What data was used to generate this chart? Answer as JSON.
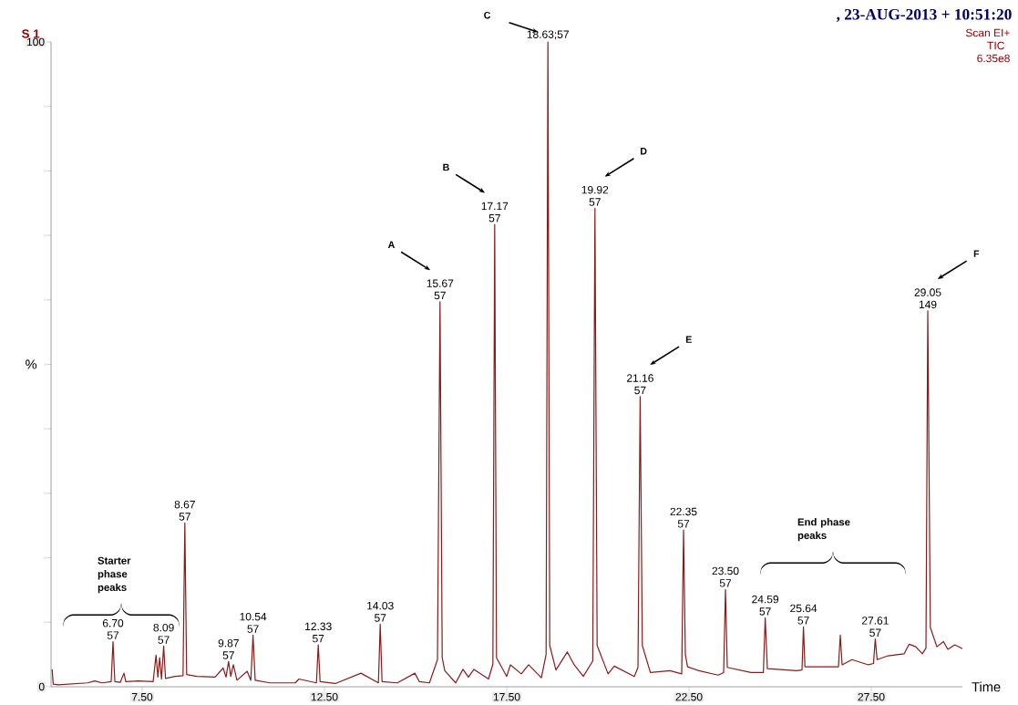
{
  "chart_data": {
    "type": "line",
    "xlabel": "Time",
    "ylabel": "%",
    "xlim": [
      5.0,
      30.0
    ],
    "ylim": [
      0,
      100
    ],
    "xticks": [
      {
        "value": 7.5,
        "label": "7.50"
      },
      {
        "value": 12.5,
        "label": "12.50"
      },
      {
        "value": 17.5,
        "label": "17.50"
      },
      {
        "value": 22.5,
        "label": "22.50"
      },
      {
        "value": 27.5,
        "label": "27.50"
      }
    ],
    "yticks": [
      0,
      {
        "value": 10,
        "label": null
      },
      {
        "value": 20,
        "label": null
      },
      {
        "value": 30,
        "label": null
      },
      {
        "value": 40,
        "label": null
      },
      {
        "value": 50,
        "label": null
      },
      {
        "value": 60,
        "label": null
      },
      {
        "value": 70,
        "label": null
      },
      {
        "value": 80,
        "label": null
      },
      {
        "value": 90,
        "label": null
      },
      100
    ],
    "x": [
      5.03,
      5.06,
      5.2,
      6.0,
      6.2,
      6.4,
      6.65,
      6.7,
      6.75,
      6.9,
      7.0,
      7.05,
      7.4,
      7.8,
      7.88,
      7.93,
      7.98,
      8.03,
      8.09,
      8.14,
      8.4,
      8.62,
      8.67,
      8.72,
      9.0,
      9.5,
      9.72,
      9.8,
      9.87,
      9.93,
      10.0,
      10.1,
      10.38,
      10.48,
      10.54,
      10.6,
      11.0,
      11.7,
      11.8,
      12.28,
      12.33,
      12.38,
      12.8,
      13.5,
      13.98,
      14.03,
      14.08,
      14.5,
      14.98,
      15.1,
      15.38,
      15.6,
      15.67,
      15.73,
      15.8,
      16.1,
      16.3,
      16.45,
      16.6,
      17.0,
      17.12,
      17.17,
      17.22,
      17.5,
      17.6,
      17.9,
      18.1,
      18.45,
      18.58,
      18.63,
      18.68,
      18.85,
      19.16,
      19.35,
      19.6,
      19.86,
      19.92,
      19.98,
      20.28,
      20.45,
      21.0,
      21.1,
      21.16,
      21.22,
      21.44,
      21.98,
      22.3,
      22.35,
      22.4,
      22.46,
      22.77,
      23.3,
      23.45,
      23.5,
      23.55,
      24.2,
      24.54,
      24.59,
      24.65,
      25.45,
      25.6,
      25.64,
      25.68,
      25.99,
      26.6,
      26.65,
      26.7,
      26.97,
      27.42,
      27.56,
      27.61,
      27.66,
      27.96,
      28.4,
      28.54,
      28.72,
      28.9,
      29.0,
      29.05,
      29.12,
      29.3,
      29.48,
      29.6,
      29.79,
      30.0
    ],
    "series": [
      {
        "color": "#8b1a1a",
        "values": [
          2.7,
          0.4,
          0.3,
          0.6,
          0.9,
          0.6,
          0.8,
          7.0,
          0.8,
          0.7,
          2.1,
          0.8,
          0.9,
          0.8,
          4.9,
          1.5,
          4.5,
          1.2,
          6.3,
          1.3,
          1.6,
          1.7,
          25.4,
          1.9,
          1.6,
          1.5,
          2.9,
          1.5,
          3.9,
          1.6,
          3.4,
          1.0,
          2.4,
          1.0,
          8.0,
          1.0,
          0.6,
          0.6,
          1.2,
          0.6,
          6.5,
          0.8,
          0.5,
          2.1,
          0.6,
          9.7,
          0.8,
          0.6,
          2.1,
          0.8,
          0.6,
          4.2,
          59.7,
          4.5,
          2.5,
          0.6,
          2.7,
          1.5,
          2.7,
          1.2,
          3.5,
          71.7,
          4.5,
          1.6,
          3.4,
          2.0,
          3.4,
          1.4,
          5.0,
          100,
          6.4,
          2.6,
          5.4,
          3.4,
          1.6,
          4.0,
          74.2,
          6.4,
          2.0,
          3.2,
          1.6,
          3.0,
          45.0,
          6.4,
          2.2,
          2.5,
          2.0,
          24.3,
          5.0,
          3.1,
          2.5,
          1.8,
          2.2,
          15.1,
          3.0,
          2.2,
          2.2,
          10.7,
          2.8,
          2.5,
          2.6,
          9.3,
          3.1,
          3.1,
          3.1,
          8.0,
          3.4,
          4.2,
          3.4,
          3.6,
          7.4,
          4.2,
          4.8,
          5.1,
          6.6,
          6.2,
          5.1,
          6.0,
          58.3,
          9.2,
          6.2,
          7.0,
          5.8,
          6.5,
          5.9
        ]
      }
    ],
    "annotations": [
      "S 1",
      ", 23-AUG-2013 + 10:51:20",
      "Scan EI+",
      "TIC",
      "6.35e8",
      {
        "text": "6.70",
        "x": 6.7,
        "y": 7.0
      },
      {
        "text": "57",
        "x": 6.7,
        "y": 7.0
      },
      {
        "text": "8.09",
        "x": 8.09,
        "y": 6.3
      },
      {
        "text": "57",
        "x": 8.09,
        "y": 6.3
      },
      {
        "text": "8.67",
        "x": 8.67,
        "y": 25.4
      },
      {
        "text": "57",
        "x": 8.67,
        "y": 25.4
      },
      {
        "text": "9.87",
        "x": 9.87,
        "y": 3.9
      },
      {
        "text": "57",
        "x": 9.87,
        "y": 3.9
      },
      {
        "text": "10.54",
        "x": 10.54,
        "y": 8.0
      },
      {
        "text": "57",
        "x": 10.54,
        "y": 8.0
      },
      {
        "text": "12.33",
        "x": 12.33,
        "y": 6.5
      },
      {
        "text": "57",
        "x": 12.33,
        "y": 6.5
      },
      {
        "text": "14.03",
        "x": 14.03,
        "y": 9.7
      },
      {
        "text": "57",
        "x": 14.03,
        "y": 9.7
      },
      {
        "text": "15.67",
        "x": 15.67,
        "y": 59.7
      },
      {
        "text": "57",
        "x": 15.67,
        "y": 59.7
      },
      {
        "text": "17.17",
        "x": 17.17,
        "y": 71.7
      },
      {
        "text": "57",
        "x": 17.17,
        "y": 71.7
      },
      {
        "text": "18.63;57",
        "x": 18.63,
        "y": 100
      },
      {
        "text": "19.92",
        "x": 19.92,
        "y": 74.2
      },
      {
        "text": "57",
        "x": 19.92,
        "y": 74.2
      },
      {
        "text": "21.16",
        "x": 21.16,
        "y": 45.0
      },
      {
        "text": "57",
        "x": 21.16,
        "y": 45.0
      },
      {
        "text": "22.35",
        "x": 22.35,
        "y": 24.3
      },
      {
        "text": "57",
        "x": 22.35,
        "y": 24.3
      },
      {
        "text": "23.50",
        "x": 23.5,
        "y": 15.1
      },
      {
        "text": "57",
        "x": 23.5,
        "y": 15.1
      },
      {
        "text": "24.59",
        "x": 24.59,
        "y": 10.7
      },
      {
        "text": "57",
        "x": 24.59,
        "y": 10.7
      },
      {
        "text": "25.64",
        "x": 25.64,
        "y": 9.3
      },
      {
        "text": "57",
        "x": 25.64,
        "y": 9.3
      },
      {
        "text": "27.61",
        "x": 27.61,
        "y": 7.4
      },
      {
        "text": "57",
        "x": 27.61,
        "y": 7.4
      },
      {
        "text": "29.05",
        "x": 29.05,
        "y": 58.3
      },
      {
        "text": "149",
        "x": 29.05,
        "y": 58.3
      },
      "A",
      "B",
      "C",
      "D",
      "E",
      "F",
      "Starter phase peaks",
      "End phase peaks"
    ]
  }
}
